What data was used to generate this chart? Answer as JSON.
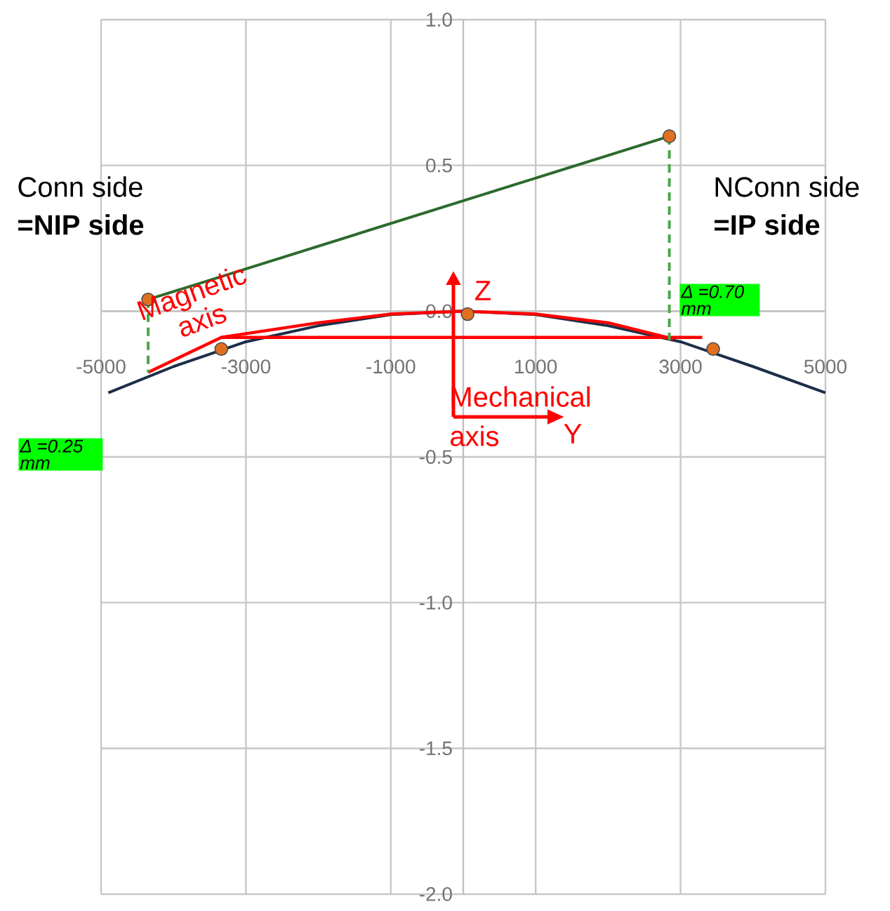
{
  "chart_data": {
    "type": "line",
    "xlim": [
      -5000,
      5000
    ],
    "ylim": [
      -2.0,
      1.0
    ],
    "xticks": [
      -5000,
      -3000,
      -1000,
      1000,
      3000,
      5000
    ],
    "yticks": [
      {
        "value": -2.0,
        "label": "-2.0"
      },
      {
        "value": -1.5,
        "label": "-1.5"
      },
      {
        "value": -1.0,
        "label": "-1.0"
      },
      {
        "value": -0.5,
        "label": "-0.5"
      },
      {
        "value": 0.0,
        "label": "0.0"
      },
      {
        "value": 0.5,
        "label": "0.5"
      },
      {
        "value": 1.0,
        "label": "1.0"
      }
    ],
    "grid": true,
    "series": [
      {
        "color": "#1c2e48",
        "line_style": "solid",
        "x": [
          -4900,
          -4000,
          -3000,
          -2000,
          -1000,
          0,
          1000,
          2000,
          3000,
          4000,
          5000
        ],
        "values": [
          -0.28,
          -0.19,
          -0.105,
          -0.05,
          -0.012,
          0.0,
          -0.012,
          -0.05,
          -0.105,
          -0.19,
          -0.28
        ]
      },
      {
        "color": "#ff0000",
        "line_style": "solid",
        "x": [
          -4350,
          -3340,
          -2000,
          -1000,
          0,
          1000,
          2000,
          2900
        ],
        "values": [
          -0.21,
          -0.09,
          -0.04,
          -0.01,
          0.0,
          -0.01,
          -0.04,
          -0.095
        ]
      },
      {
        "color": "#ff0000",
        "line_style": "solid",
        "x": [
          -3340,
          3300
        ],
        "values": [
          -0.09,
          -0.09
        ]
      },
      {
        "color": "#4ca64c",
        "line_style": "dashed",
        "x": [
          -4350,
          -4350
        ],
        "values": [
          0.04,
          -0.21
        ]
      },
      {
        "color": "#4ca64c",
        "line_style": "dashed",
        "x": [
          2845,
          2845
        ],
        "values": [
          0.6,
          -0.1
        ]
      },
      {
        "color": "#2d6a2d",
        "line_style": "solid",
        "x": [
          -4350,
          2845
        ],
        "values": [
          0.04,
          0.6
        ]
      },
      {
        "type": "scatter",
        "color": "#e07020",
        "marker": "circle",
        "x": [
          -4350,
          -3340,
          60,
          2845,
          3450
        ],
        "values": [
          0.04,
          -0.13,
          -0.01,
          0.6,
          -0.13
        ]
      }
    ],
    "annotations": [
      "Conn side",
      "=NIP side",
      "NConn side",
      "=IP side",
      "Magnetic axis",
      "Mechanical axis",
      "Z",
      "Y",
      "Δ =0.25 mm",
      "Δ =0.70 mm"
    ]
  }
}
